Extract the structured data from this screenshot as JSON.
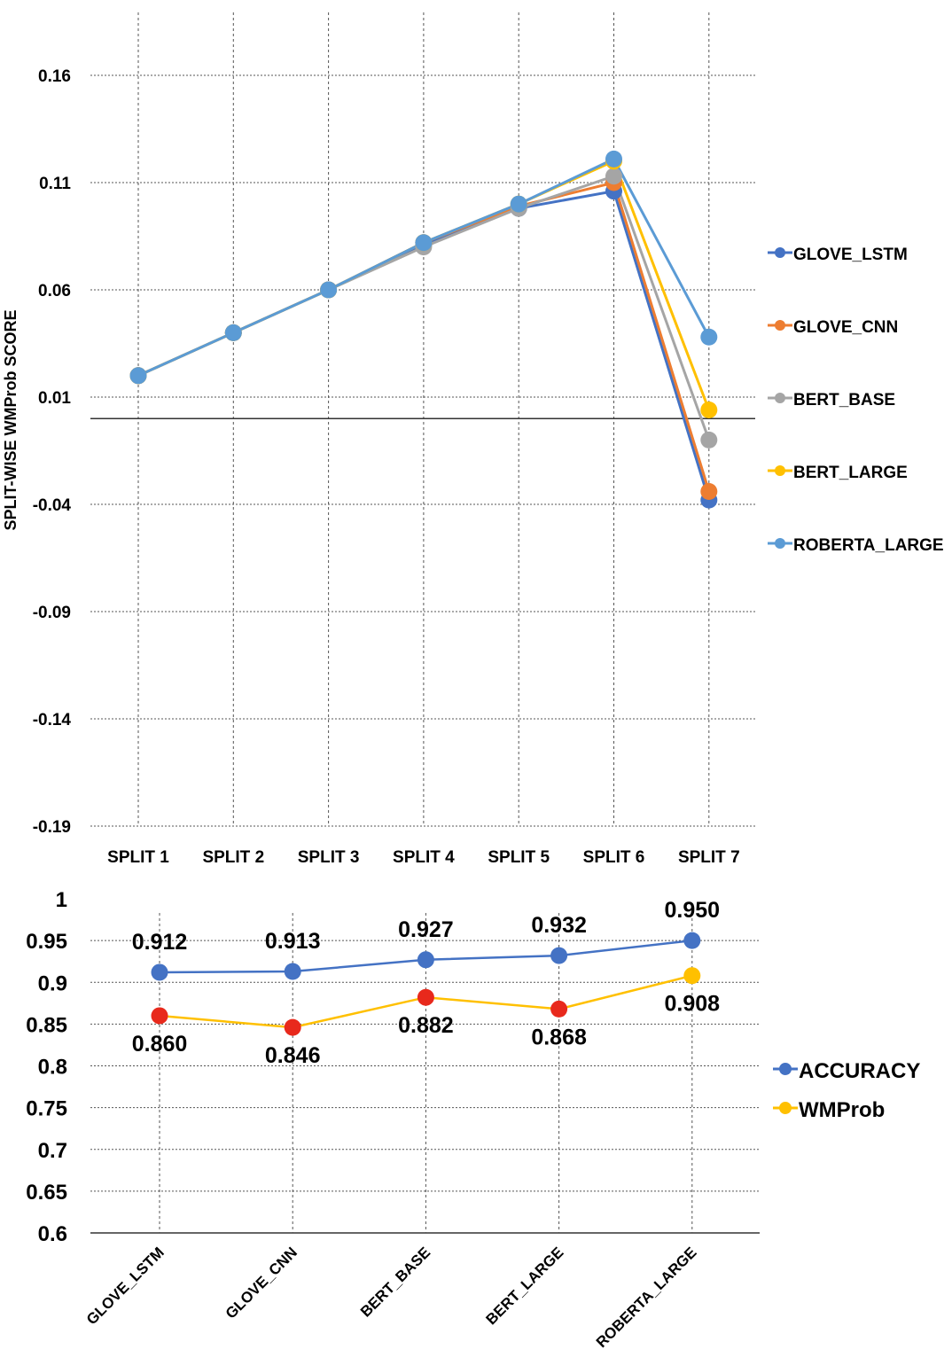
{
  "chart_data": [
    {
      "type": "line",
      "title": "",
      "xlabel": "",
      "ylabel": "SPLIT-WISE WMProb SCORE",
      "categories": [
        "SPLIT 1",
        "SPLIT 2",
        "SPLIT 3",
        "SPLIT 4",
        "SPLIT 5",
        "SPLIT 6",
        "SPLIT 7"
      ],
      "y_ticks": [
        "0.16",
        "0.11",
        "0.06",
        "0.01",
        "-0.04",
        "-0.09",
        "-0.14",
        "-0.19"
      ],
      "ylim": [
        -0.19,
        0.19
      ],
      "grid": true,
      "legend_position": "right",
      "series": [
        {
          "name": "GLOVE_LSTM",
          "color": "#4472C4",
          "values": [
            0.02,
            0.04,
            0.06,
            0.081,
            0.098,
            0.106,
            -0.038
          ]
        },
        {
          "name": "GLOVE_CNN",
          "color": "#ED7D31",
          "values": [
            0.02,
            0.04,
            0.06,
            0.082,
            0.099,
            0.11,
            -0.034
          ]
        },
        {
          "name": "BERT_BASE",
          "color": "#A5A5A5",
          "values": [
            0.02,
            0.04,
            0.06,
            0.08,
            0.098,
            0.113,
            -0.01
          ]
        },
        {
          "name": "BERT_LARGE",
          "color": "#FFC000",
          "values": [
            0.02,
            0.04,
            0.06,
            0.082,
            0.1,
            0.12,
            0.004
          ]
        },
        {
          "name": "ROBERTA_LARGE",
          "color": "#5B9BD5",
          "values": [
            0.02,
            0.04,
            0.06,
            0.082,
            0.1,
            0.121,
            0.038
          ]
        }
      ]
    },
    {
      "type": "line",
      "title": "",
      "xlabel": "",
      "ylabel": "",
      "categories": [
        "GLOVE_LSTM",
        "GLOVE_CNN",
        "BERT_BASE",
        "BERT_LARGE",
        "ROBERTA_LARGE"
      ],
      "y_ticks": [
        "1",
        "0.95",
        "0.9",
        "0.85",
        "0.8",
        "0.75",
        "0.7",
        "0.65",
        "0.6"
      ],
      "ylim": [
        0.6,
        1.0
      ],
      "grid": true,
      "legend_position": "right",
      "series": [
        {
          "name": "ACCURACY",
          "color": "#4472C4",
          "marker_colors": [
            "#4472C4",
            "#4472C4",
            "#4472C4",
            "#4472C4",
            "#4472C4"
          ],
          "values": [
            0.912,
            0.913,
            0.927,
            0.932,
            0.95
          ],
          "labels": [
            "0.912",
            "0.913",
            "0.927",
            "0.932",
            "0.950"
          ]
        },
        {
          "name": "WMProb",
          "color": "#FFC000",
          "marker_colors": [
            "#E8291C",
            "#E8291C",
            "#E8291C",
            "#E8291C",
            "#FFC000"
          ],
          "values": [
            0.86,
            0.846,
            0.882,
            0.868,
            0.908
          ],
          "labels": [
            "0.860",
            "0.846",
            "0.882",
            "0.868",
            "0.908"
          ]
        }
      ]
    }
  ]
}
